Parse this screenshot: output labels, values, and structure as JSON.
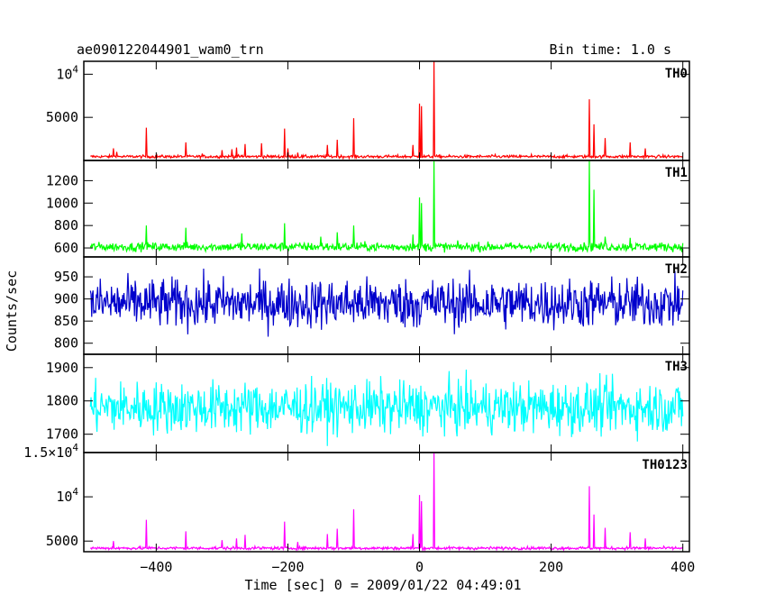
{
  "header": {
    "title": "ae090122044901_wam0_trn",
    "bin_time": "Bin time: 1.0 s"
  },
  "axes": {
    "xlabel": "Time [sec] 0 = 2009/01/22 04:49:01",
    "ylabel": "Counts/sec"
  },
  "chart_data": {
    "type": "line",
    "x_range": [
      -510,
      410
    ],
    "x_ticks": [
      -400,
      -200,
      0,
      200,
      400
    ],
    "x_tick_labels": [
      "−400",
      "−200",
      "0",
      "200",
      "400"
    ],
    "panels": [
      {
        "name": "TH0",
        "color": "#ff0000",
        "ylim": [
          0,
          11500
        ],
        "y_ticks": [
          5000,
          10000
        ],
        "y_tick_labels": [
          "5000",
          "10^4"
        ],
        "baseline": 450,
        "noise": 120,
        "spikes": [
          [
            -465,
            1400
          ],
          [
            -460,
            1000
          ],
          [
            -415,
            3800
          ],
          [
            -355,
            2100
          ],
          [
            -330,
            800
          ],
          [
            -300,
            1200
          ],
          [
            -285,
            1300
          ],
          [
            -278,
            1500
          ],
          [
            -265,
            1900
          ],
          [
            -240,
            2000
          ],
          [
            -205,
            3700
          ],
          [
            -200,
            1400
          ],
          [
            -185,
            900
          ],
          [
            -140,
            1800
          ],
          [
            -125,
            2400
          ],
          [
            -100,
            4900
          ],
          [
            -10,
            1800
          ],
          [
            0,
            6600
          ],
          [
            3,
            6300
          ],
          [
            22,
            11500
          ],
          [
            115,
            700
          ],
          [
            170,
            700
          ],
          [
            258,
            7100
          ],
          [
            265,
            4200
          ],
          [
            282,
            2600
          ],
          [
            320,
            2100
          ],
          [
            343,
            1400
          ]
        ]
      },
      {
        "name": "TH1",
        "color": "#00ff00",
        "ylim": [
          520,
          1380
        ],
        "y_ticks": [
          600,
          800,
          1000,
          1200
        ],
        "y_tick_labels": [
          "600",
          "800",
          "1000",
          "1200"
        ],
        "baseline": 610,
        "noise": 28,
        "spikes": [
          [
            -415,
            800
          ],
          [
            -355,
            780
          ],
          [
            -270,
            730
          ],
          [
            -205,
            820
          ],
          [
            -150,
            700
          ],
          [
            -125,
            740
          ],
          [
            -100,
            800
          ],
          [
            -10,
            720
          ],
          [
            0,
            1050
          ],
          [
            3,
            1000
          ],
          [
            22,
            1400
          ],
          [
            258,
            1390
          ],
          [
            265,
            1120
          ],
          [
            282,
            700
          ],
          [
            320,
            690
          ]
        ]
      },
      {
        "name": "TH2",
        "color": "#0000cc",
        "ylim": [
          775,
          995
        ],
        "y_ticks": [
          800,
          850,
          900,
          950
        ],
        "y_tick_labels": [
          "800",
          "850",
          "900",
          "950"
        ],
        "baseline": 890,
        "noise": 40,
        "spikes": []
      },
      {
        "name": "TH3",
        "color": "#00ffff",
        "ylim": [
          1645,
          1940
        ],
        "y_ticks": [
          1700,
          1800,
          1900
        ],
        "y_tick_labels": [
          "1700",
          "1800",
          "1900"
        ],
        "baseline": 1780,
        "noise": 55,
        "spikes": []
      },
      {
        "name": "TH0123",
        "color": "#ff00ff",
        "ylim": [
          3800,
          15000
        ],
        "y_ticks": [
          5000,
          10000,
          15000
        ],
        "y_tick_labels": [
          "5000",
          "10^4",
          "1.5×10^4"
        ],
        "baseline": 4200,
        "noise": 120,
        "spikes": [
          [
            -465,
            5000
          ],
          [
            -415,
            7400
          ],
          [
            -355,
            6100
          ],
          [
            -300,
            5100
          ],
          [
            -278,
            5300
          ],
          [
            -265,
            5700
          ],
          [
            -205,
            7200
          ],
          [
            -185,
            4900
          ],
          [
            -140,
            5800
          ],
          [
            -125,
            6400
          ],
          [
            -100,
            8600
          ],
          [
            -10,
            5800
          ],
          [
            0,
            10200
          ],
          [
            3,
            9500
          ],
          [
            22,
            15200
          ],
          [
            258,
            11200
          ],
          [
            265,
            8000
          ],
          [
            282,
            6500
          ],
          [
            320,
            6000
          ],
          [
            343,
            5300
          ]
        ]
      }
    ]
  }
}
